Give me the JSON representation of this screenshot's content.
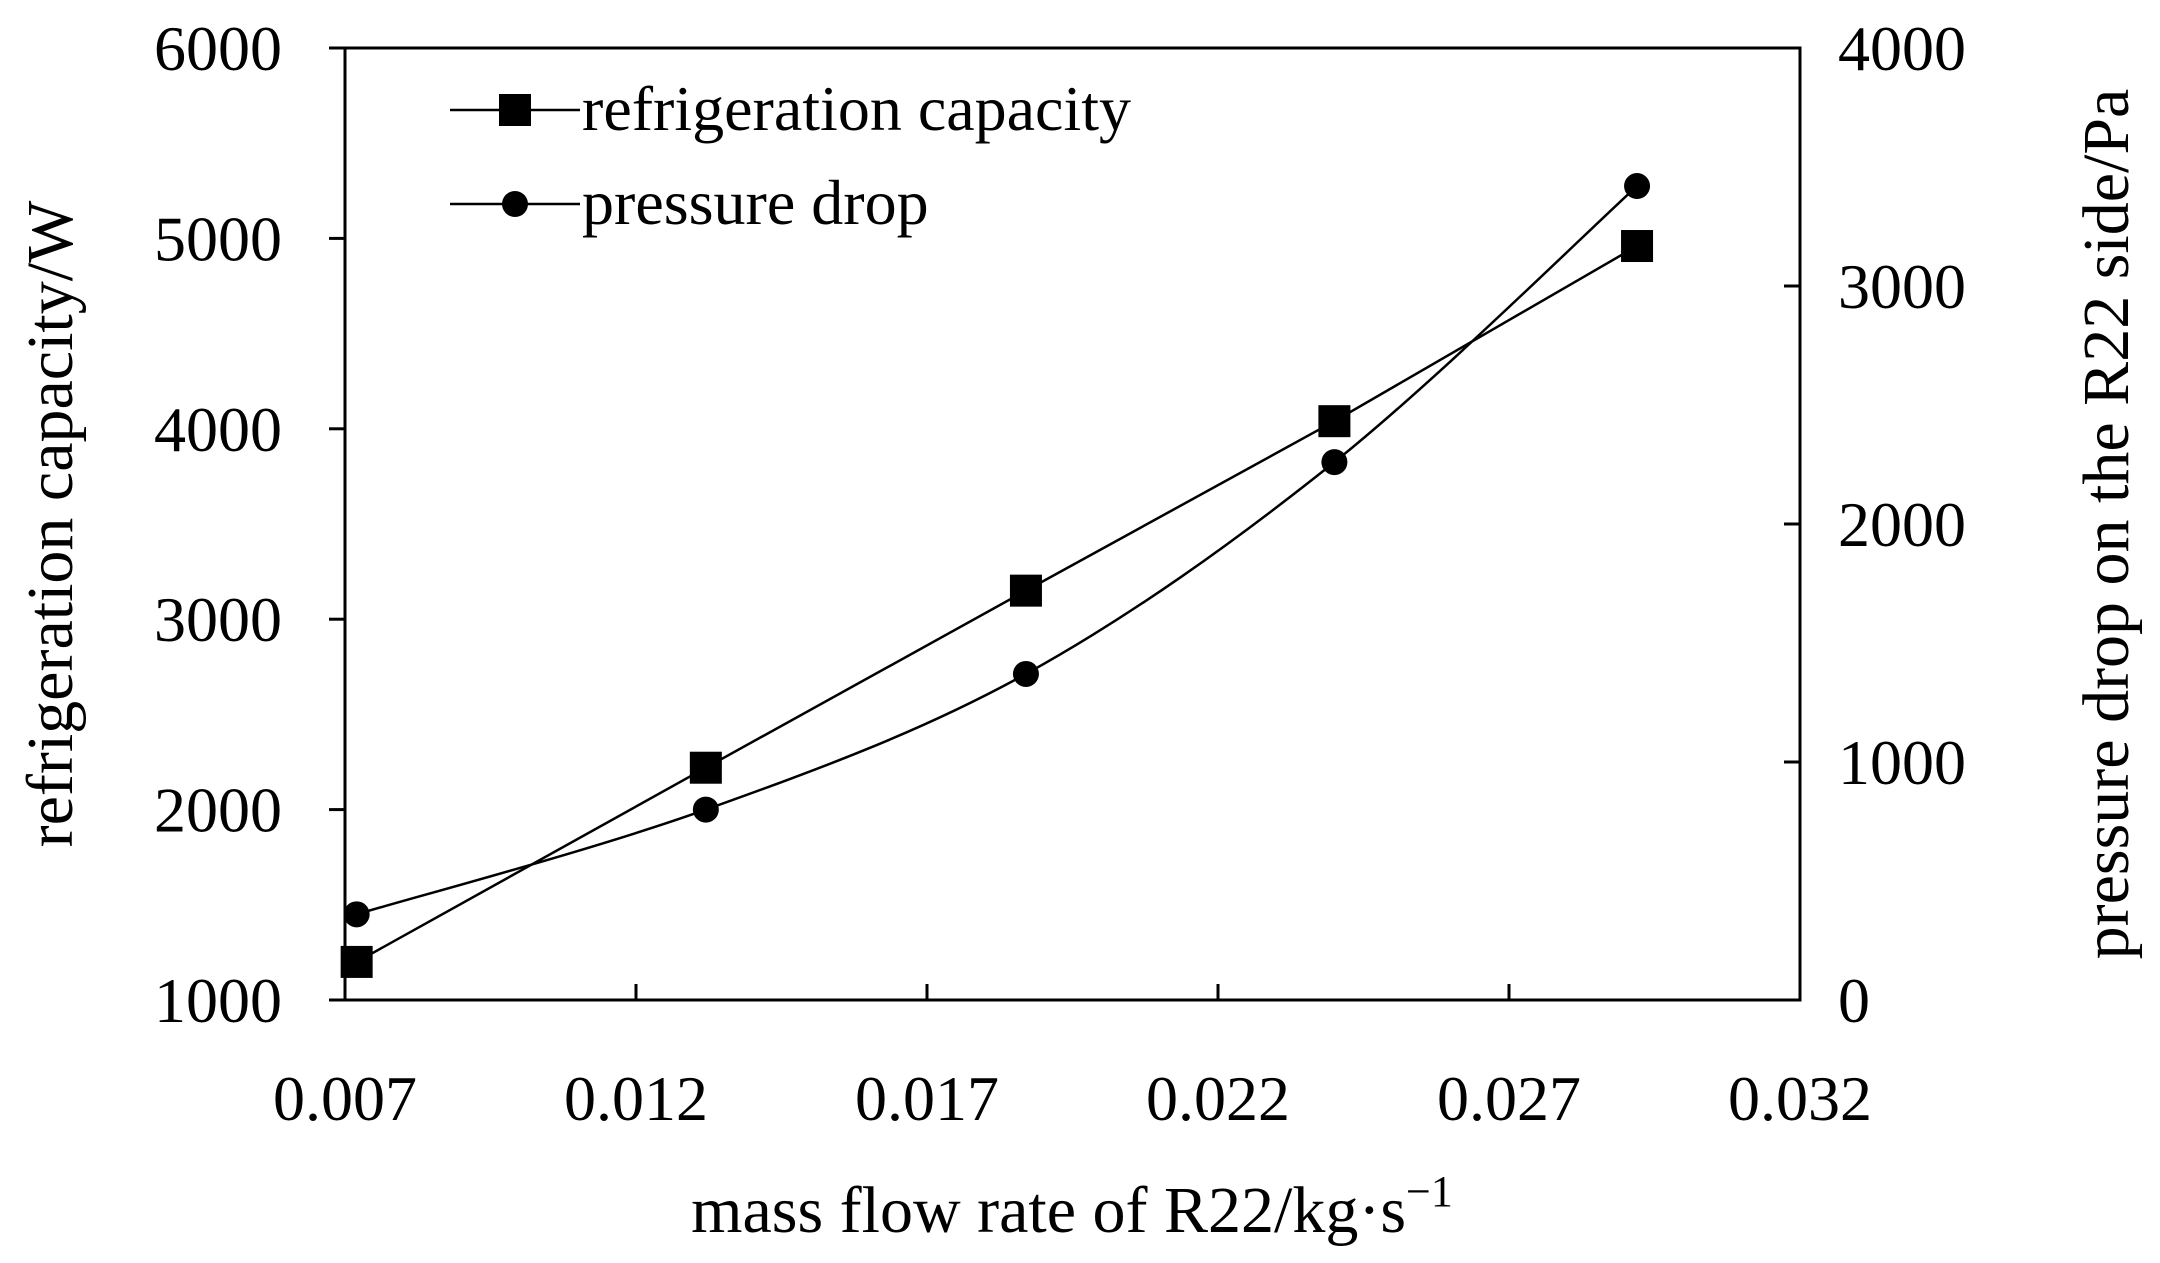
{
  "chart_data": {
    "type": "line",
    "title": "",
    "xlabel": "mass flow rate of R22/kg·s",
    "xlabel_superscript": "−1",
    "ylabel_left": "refrigeration capacity/W",
    "ylabel_right": "pressure drop on the R22 side/Pa",
    "xlim": [
      0.007,
      0.032
    ],
    "ylim_left": [
      1000,
      6000
    ],
    "ylim_right": [
      0,
      4000
    ],
    "x_ticks": [
      "0.007",
      "0.012",
      "0.017",
      "0.022",
      "0.027",
      "0.032"
    ],
    "y_left_ticks": [
      "1000",
      "2000",
      "3000",
      "4000",
      "5000",
      "6000"
    ],
    "y_right_ticks": [
      "0",
      "1000",
      "2000",
      "3000",
      "4000"
    ],
    "grid": false,
    "legend_position": "top-left",
    "series": [
      {
        "name": "refrigeration capacity",
        "axis": "left",
        "marker": "square",
        "x": [
          0.0072,
          0.0132,
          0.0187,
          0.024,
          0.0292
        ],
        "values": [
          1200,
          2220,
          3150,
          4040,
          4960
        ]
      },
      {
        "name": "pressure drop",
        "axis": "right",
        "marker": "circle",
        "x": [
          0.0072,
          0.0132,
          0.0187,
          0.024,
          0.0292
        ],
        "values": [
          360,
          800,
          1370,
          2260,
          3420
        ]
      }
    ]
  }
}
